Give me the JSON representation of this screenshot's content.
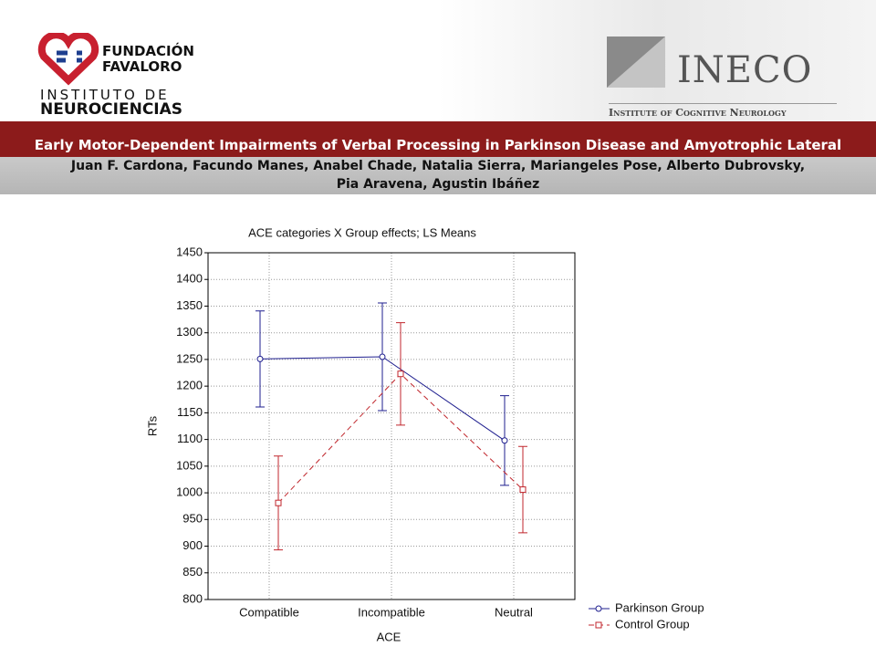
{
  "header": {
    "left_logo": [
      "FUNDACIÓN",
      "FAVALORO",
      "INSTITUTO DE",
      "NEUROCIENCIAS"
    ],
    "right_logo": [
      "INECO",
      "Institute of Cognitive Neurology"
    ],
    "title": "Early Motor-Dependent Impairments of Verbal Processing in Parkinson Disease and Amyotrophic Lateral Sclerosis",
    "authors": [
      "Juan F. Cardona, Facundo Manes, Anabel Chade, Natalia Sierra, Mariangeles Pose, Alberto Dubrovsky,",
      "Pia Aravena, Agustin Ibáñez"
    ]
  },
  "chart_data": {
    "type": "line",
    "title": "ACE categories X Group effects; LS Means",
    "x_label": "ACE",
    "y_label": "RTs",
    "categories": [
      "Compatible",
      "Incompatible",
      "Neutral"
    ],
    "series": [
      {
        "name": "Parkinson Group",
        "color": "#1f1f8f",
        "line_style": "solid",
        "marker": "circle",
        "values": [
          1251,
          1255,
          1098
        ],
        "errors": [
          90,
          101,
          84
        ]
      },
      {
        "name": "Control Group",
        "color": "#c0262c",
        "line_style": "dashed",
        "marker": "square",
        "values": [
          981,
          1223,
          1006
        ],
        "errors": [
          88,
          96,
          81
        ]
      }
    ],
    "ylim": [
      800,
      1450
    ],
    "yticks": [
      800,
      850,
      900,
      950,
      1000,
      1050,
      1100,
      1150,
      1200,
      1250,
      1300,
      1350,
      1400,
      1450
    ],
    "grid": true,
    "legend": "bottom-right"
  }
}
